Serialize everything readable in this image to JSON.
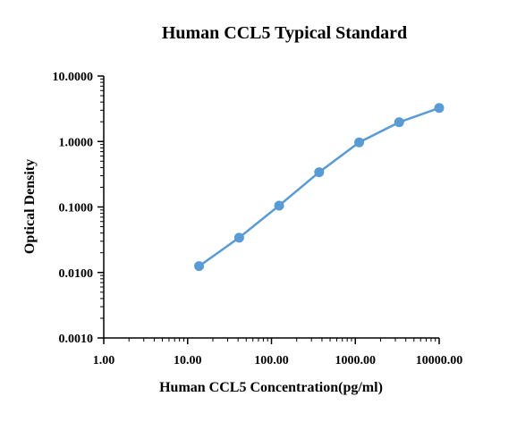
{
  "chart_data": {
    "type": "line",
    "title": "Human CCL5 Typical Standard",
    "xlabel": "Human CCL5 Concentration(pg/ml)",
    "ylabel": "Optical Density",
    "x_scale": "log",
    "y_scale": "log",
    "xlim": [
      1,
      10000
    ],
    "ylim": [
      0.001,
      10
    ],
    "x_ticks": [
      {
        "value": 1,
        "label": "1.00"
      },
      {
        "value": 10,
        "label": "10.00"
      },
      {
        "value": 100,
        "label": "100.00"
      },
      {
        "value": 1000,
        "label": "1000.00"
      },
      {
        "value": 10000,
        "label": "10000.00"
      }
    ],
    "y_ticks": [
      {
        "value": 0.001,
        "label": "0.0010"
      },
      {
        "value": 0.01,
        "label": "0.0100"
      },
      {
        "value": 0.1,
        "label": "0.1000"
      },
      {
        "value": 1,
        "label": "1.0000"
      },
      {
        "value": 10,
        "label": "10.0000"
      }
    ],
    "grid": false,
    "legend": "none",
    "series": [
      {
        "color": "#5b9bd5",
        "x": [
          13.7,
          41.2,
          123.5,
          370.4,
          1111.1,
          3333.3,
          10000
        ],
        "y": [
          0.0125,
          0.034,
          0.105,
          0.34,
          0.97,
          1.97,
          3.25
        ]
      }
    ]
  }
}
